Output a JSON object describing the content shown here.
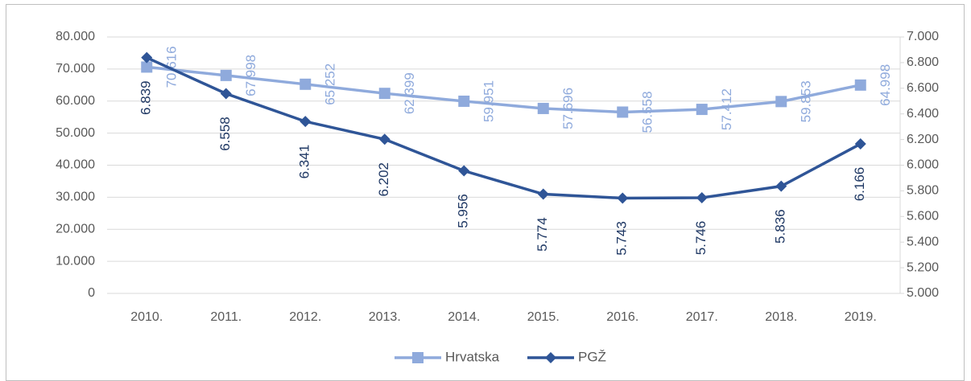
{
  "chart_data": {
    "type": "line",
    "categories": [
      "2010.",
      "2011.",
      "2012.",
      "2013.",
      "2014.",
      "2015.",
      "2016.",
      "2017.",
      "2018.",
      "2019."
    ],
    "series": [
      {
        "name": "Hrvatska",
        "color": "#8faadc",
        "label_color": "#8faadc",
        "marker": "square",
        "axis": "y",
        "values": [
          70616,
          67998,
          65252,
          62399,
          59951,
          57696,
          56558,
          57412,
          59853,
          64998
        ],
        "value_labels": [
          "70.616",
          "67.998",
          "65.252",
          "62.399",
          "59.951",
          "57.696",
          "56.558",
          "57.412",
          "59.853",
          "64.998"
        ]
      },
      {
        "name": "PGŽ",
        "color": "#2f5597",
        "label_color": "#1f3864",
        "marker": "diamond",
        "axis": "y2",
        "values": [
          6839,
          6558,
          6341,
          6202,
          5956,
          5774,
          5743,
          5746,
          5836,
          6166
        ],
        "value_labels": [
          "6.839",
          "6.558",
          "6.341",
          "6.202",
          "5.956",
          "5.774",
          "5.743",
          "5.746",
          "5.836",
          "6.166"
        ]
      }
    ],
    "ylim": [
      0,
      80000
    ],
    "yticks": [
      0,
      {
        "value": 10000,
        "label": "10.000"
      },
      {
        "value": 20000,
        "label": "20.000"
      },
      {
        "value": 30000,
        "label": "30.000"
      },
      {
        "value": 40000,
        "label": "40.000"
      },
      {
        "value": 50000,
        "label": "50.000"
      },
      {
        "value": 60000,
        "label": "60.000"
      },
      {
        "value": 70000,
        "label": "70.000"
      },
      {
        "value": 80000,
        "label": "80.000"
      }
    ],
    "y2lim": [
      5000,
      7000
    ],
    "y2ticks": [
      {
        "value": 5000,
        "label": "5.000"
      },
      {
        "value": 5200,
        "label": "5.200"
      },
      {
        "value": 5400,
        "label": "5.400"
      },
      {
        "value": 5600,
        "label": "5.600"
      },
      {
        "value": 5800,
        "label": "5.800"
      },
      {
        "value": 6000,
        "label": "6.000"
      },
      {
        "value": 6200,
        "label": "6.200"
      },
      {
        "value": 6400,
        "label": "6.400"
      },
      {
        "value": 6600,
        "label": "6.600"
      },
      {
        "value": 6800,
        "label": "6.800"
      },
      {
        "value": 7000,
        "label": "7.000"
      }
    ],
    "grid": true,
    "legend": "bottom"
  }
}
